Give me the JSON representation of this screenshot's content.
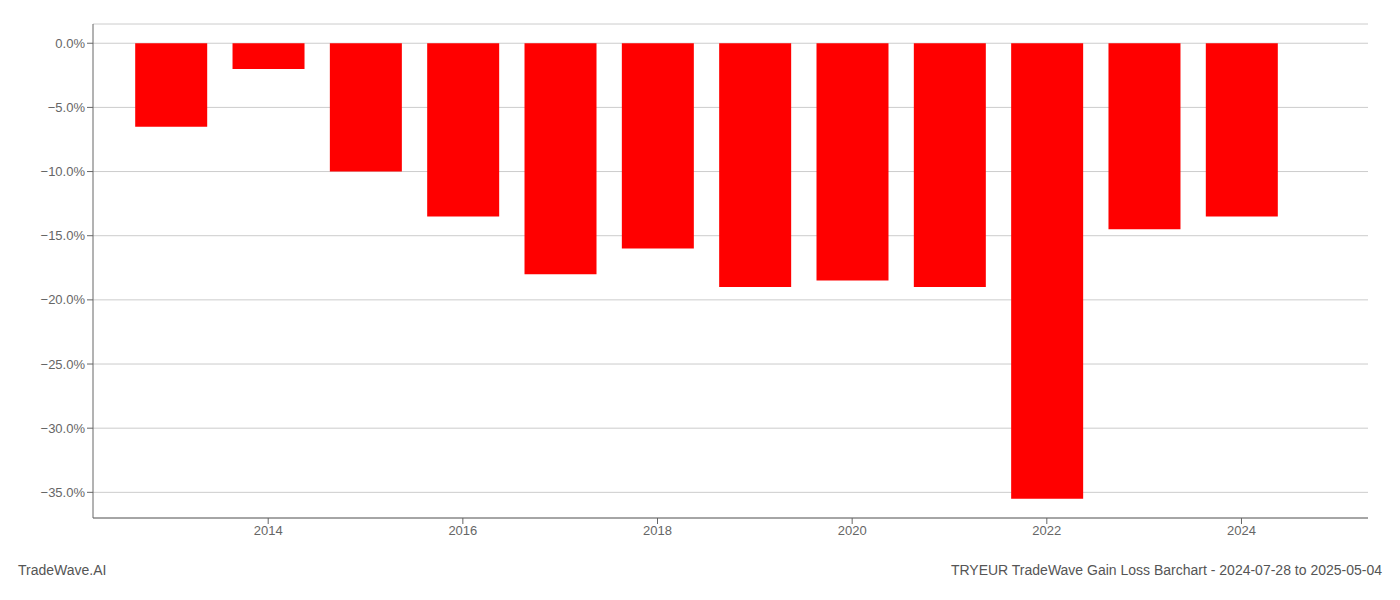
{
  "chart_data": {
    "type": "bar",
    "title": "TRYEUR TradeWave Gain Loss Barchart - 2024-07-28 to 2025-05-04",
    "annotations": [
      "TradeWave.AI"
    ],
    "x": [
      2013,
      2014,
      2015,
      2016,
      2017,
      2018,
      2019,
      2020,
      2021,
      2022,
      2023,
      2024
    ],
    "values": [
      -6.5,
      -2.0,
      -10.0,
      -13.5,
      -18.0,
      -16.0,
      -19.0,
      -18.5,
      -19.0,
      -35.5,
      -14.5,
      -13.5
    ],
    "color": "#ff0000",
    "xlim": [
      2012.2,
      2025.3
    ],
    "xticks": [
      2014,
      2016,
      2018,
      2020,
      2022,
      2024
    ],
    "ylim": [
      -37,
      1.5
    ],
    "yticks": [
      {
        "value": 0.0,
        "label": "0.0%"
      },
      {
        "value": -5.0,
        "label": "−5.0%"
      },
      {
        "value": -10.0,
        "label": "−10.0%"
      },
      {
        "value": -15.0,
        "label": "−15.0%"
      },
      {
        "value": -20.0,
        "label": "−20.0%"
      },
      {
        "value": -25.0,
        "label": "−25.0%"
      },
      {
        "value": -30.0,
        "label": "−30.0%"
      },
      {
        "value": -35.0,
        "label": "−35.0%"
      }
    ],
    "grid": true
  }
}
